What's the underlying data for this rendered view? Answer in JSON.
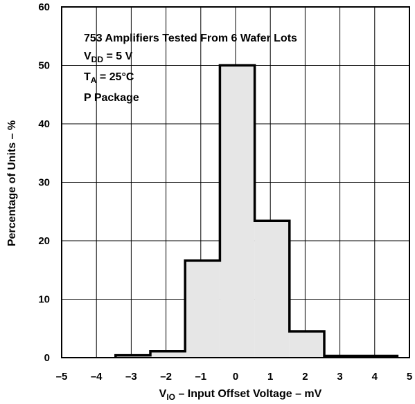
{
  "chart_data": {
    "type": "histogram",
    "xlabel": {
      "prefix": "V",
      "sub": "IO",
      "rest": " – Input Offset Voltage – mV"
    },
    "ylabel": "Percentage of Units – %",
    "xlim": [
      -5,
      5
    ],
    "ylim": [
      0,
      60
    ],
    "xticks": [
      -5,
      -4,
      -3,
      -2,
      -1,
      0,
      1,
      2,
      3,
      4,
      5
    ],
    "yticks": [
      0,
      10,
      20,
      30,
      40,
      50,
      60
    ],
    "xtick_labels": [
      "–5",
      "–4",
      "–3",
      "–2",
      "–1",
      "0",
      "1",
      "2",
      "3",
      "4",
      "5"
    ],
    "ytick_labels": [
      "0",
      "10",
      "20",
      "30",
      "40",
      "50",
      "60"
    ],
    "grid": true,
    "bins": [
      {
        "x0": -3.45,
        "x1": -2.45,
        "value": 0.4
      },
      {
        "x0": -2.45,
        "x1": -1.45,
        "value": 1.1
      },
      {
        "x0": -1.45,
        "x1": -0.45,
        "value": 16.6
      },
      {
        "x0": -0.45,
        "x1": 0.55,
        "value": 50.0
      },
      {
        "x0": 0.55,
        "x1": 1.55,
        "value": 23.4
      },
      {
        "x0": 1.55,
        "x1": 2.55,
        "value": 4.5
      },
      {
        "x0": 2.55,
        "x1": 4.65,
        "value": 0.3
      }
    ],
    "annotations": [
      {
        "text": "753 Amplifiers Tested From 6 Wafer Lots"
      },
      {
        "prefix": "V",
        "sub": "DD",
        "rest": " = 5 V"
      },
      {
        "prefix": "T",
        "sub": "A",
        "rest": " = 25°C"
      },
      {
        "text": "P Package"
      }
    ],
    "colors": {
      "fill": "#e6e6e6",
      "stroke": "#000000",
      "grid": "#000000"
    }
  }
}
